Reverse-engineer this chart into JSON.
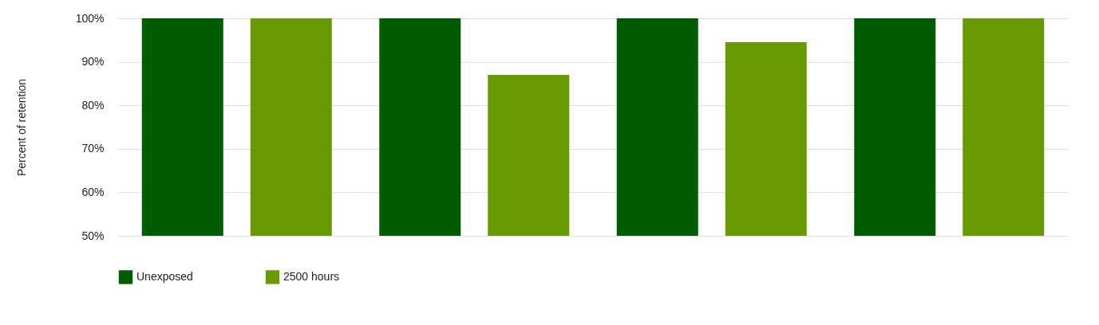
{
  "chart_data": {
    "type": "bar",
    "ylabel": "Percent of retention",
    "categories": [
      null,
      null,
      null,
      null
    ],
    "series": [
      {
        "name": "Unexposed",
        "color": "#005c00",
        "values": [
          100,
          100,
          100,
          100
        ]
      },
      {
        "name": "2500 hours",
        "color": "#689a00",
        "values": [
          100,
          87,
          94.5,
          100
        ]
      }
    ],
    "ylim": [
      50,
      100
    ],
    "yticks": [
      {
        "value": 50,
        "label": "50%"
      },
      {
        "value": 60,
        "label": "60%"
      },
      {
        "value": 70,
        "label": "70%"
      },
      {
        "value": 80,
        "label": "80%"
      },
      {
        "value": 90,
        "label": "90%"
      },
      {
        "value": 100,
        "label": "100%"
      }
    ],
    "grid": "y",
    "legend": "bottom"
  }
}
